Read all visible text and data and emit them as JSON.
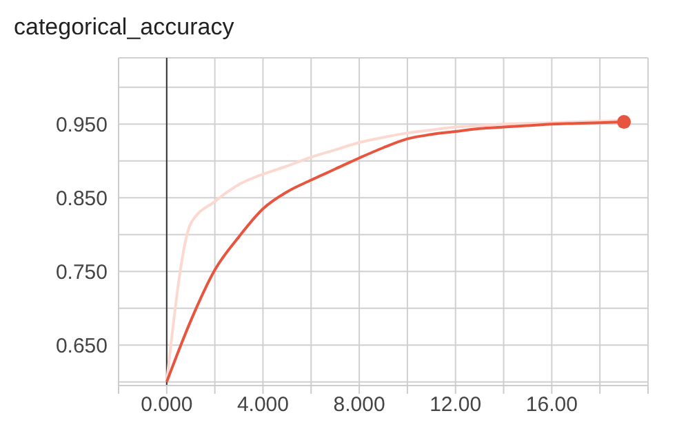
{
  "chart_data": {
    "type": "line",
    "title": "categorical_accuracy",
    "x": [
      0,
      1,
      2,
      3,
      4,
      5,
      6,
      7,
      8,
      9,
      10,
      11,
      12,
      13,
      14,
      15,
      16,
      17,
      18,
      19
    ],
    "series": [
      {
        "color": "#fcd9d0",
        "values": [
          0.6,
          0.815,
          0.845,
          0.868,
          0.882,
          0.893,
          0.905,
          0.915,
          0.925,
          0.932,
          0.938,
          0.942,
          0.946,
          0.948,
          0.95,
          0.951,
          0.952,
          0.953,
          0.954,
          0.955
        ]
      },
      {
        "color": "#e8553f",
        "values": [
          0.6,
          0.683,
          0.752,
          0.797,
          0.835,
          0.858,
          0.874,
          0.889,
          0.904,
          0.918,
          0.93,
          0.936,
          0.94,
          0.944,
          0.946,
          0.948,
          0.95,
          0.951,
          0.952,
          0.953
        ]
      },
      {
        "type": "scatter",
        "marker": "circle",
        "color": "#e8553f",
        "x": [
          19
        ],
        "values": [
          0.953
        ]
      }
    ],
    "xlim": [
      -2,
      20
    ],
    "xticks": [
      {
        "value": -2,
        "label": null
      },
      {
        "value": 0,
        "label": "0.000"
      },
      {
        "value": 2,
        "label": null
      },
      {
        "value": 4,
        "label": "4.000"
      },
      {
        "value": 6,
        "label": null
      },
      {
        "value": 8,
        "label": "8.000"
      },
      {
        "value": 10,
        "label": null
      },
      {
        "value": 12,
        "label": "12.00"
      },
      {
        "value": 14,
        "label": null
      },
      {
        "value": 16,
        "label": "16.00"
      },
      {
        "value": 18,
        "label": null
      },
      {
        "value": 20,
        "label": null
      }
    ],
    "ylim": [
      0.595,
      1.04
    ],
    "yticks": [
      {
        "value": 0.6,
        "label": null
      },
      {
        "value": 0.65,
        "label": "0.650"
      },
      {
        "value": 0.7,
        "label": null
      },
      {
        "value": 0.75,
        "label": "0.750"
      },
      {
        "value": 0.8,
        "label": null
      },
      {
        "value": 0.85,
        "label": "0.850"
      },
      {
        "value": 0.9,
        "label": null
      },
      {
        "value": 0.95,
        "label": "0.950"
      },
      {
        "value": 1.0,
        "label": null
      }
    ],
    "ref_lines": [
      {
        "axis": "x",
        "value": 0,
        "color": "#333333"
      }
    ],
    "grid": true,
    "line_style": "solid"
  }
}
